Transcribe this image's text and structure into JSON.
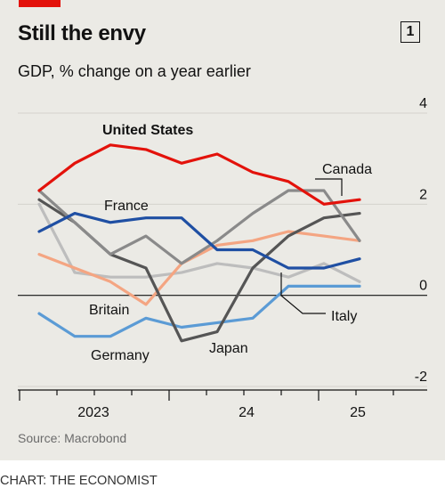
{
  "header": {
    "title": "Still the envy",
    "chart_number": "1",
    "subtitle": "GDP, % change on a year earlier"
  },
  "footer": {
    "source": "Source: Macrobond",
    "credit": "CHART: THE ECONOMIST"
  },
  "colors": {
    "accent": "#e3120b",
    "background": "#ebeae5"
  },
  "chart_data": {
    "type": "line",
    "title": "Still the envy",
    "subtitle": "GDP, % change on a year earlier",
    "xlabel": "",
    "ylabel": "",
    "x": [
      "2022-Q3",
      "2022-Q4",
      "2023-Q1",
      "2023-Q2",
      "2023-Q3",
      "2023-Q4",
      "2024-Q1",
      "2024-Q2",
      "2024-Q3",
      "2024-Q4",
      "2025-Q1"
    ],
    "x_tick_labels": [
      {
        "at": "2023-Q1",
        "label": "2023"
      },
      {
        "at": "2024-Q1",
        "label": "24"
      },
      {
        "at": "2025-Q1",
        "label": "25"
      }
    ],
    "y_tick_labels": [
      "4",
      "2",
      "0",
      "-2"
    ],
    "y_ticks": [
      4,
      2,
      0,
      -2
    ],
    "ylim": [
      -2.2,
      4.3
    ],
    "grid": true,
    "series": [
      {
        "name": "United States",
        "color": "#e3120b",
        "values": [
          2.3,
          2.9,
          3.3,
          3.2,
          2.9,
          3.1,
          2.7,
          2.5,
          2.0,
          2.1,
          null
        ]
      },
      {
        "name": "Canada",
        "color": "#8a8a8a",
        "values": [
          2.3,
          1.6,
          0.9,
          1.3,
          0.7,
          1.2,
          1.8,
          2.3,
          2.3,
          1.2,
          null
        ]
      },
      {
        "name": "France",
        "color": "#1f4fa3",
        "values": [
          1.4,
          1.8,
          1.6,
          1.7,
          1.7,
          1.0,
          1.0,
          0.6,
          0.6,
          0.8,
          null
        ]
      },
      {
        "name": "Britain",
        "color": "#f4a582",
        "values": [
          0.9,
          0.6,
          0.3,
          -0.2,
          0.7,
          1.1,
          1.2,
          1.4,
          1.3,
          1.2,
          null
        ]
      },
      {
        "name": "Italy",
        "color": "#555555",
        "values": [
          2.1,
          1.6,
          0.9,
          0.6,
          -1.0,
          -0.8,
          0.6,
          1.3,
          1.7,
          1.8,
          null
        ]
      },
      {
        "name": "Germany",
        "color": "#5b9bd5",
        "values": [
          -0.4,
          -0.9,
          -0.9,
          -0.5,
          -0.7,
          -0.6,
          -0.5,
          0.2,
          0.2,
          0.2,
          null
        ]
      },
      {
        "name": "Japan",
        "color": "#bdbdbd",
        "values": [
          2.0,
          0.5,
          0.4,
          0.4,
          0.5,
          0.7,
          0.6,
          0.4,
          0.7,
          0.3,
          null
        ]
      }
    ]
  }
}
